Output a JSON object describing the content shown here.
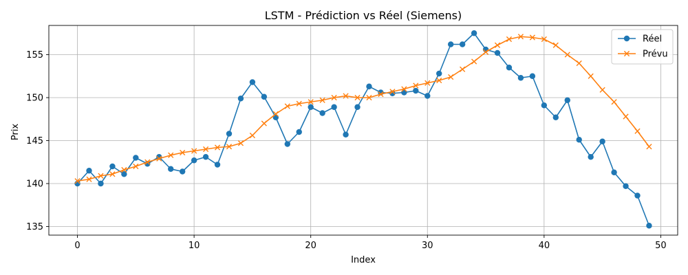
{
  "chart_data": {
    "type": "line",
    "title": "LSTM - Prédiction vs Réel (Siemens)",
    "xlabel": "Index",
    "ylabel": "Prix",
    "xlim": [
      -2.45,
      51.45
    ],
    "ylim": [
      134.0,
      158.4
    ],
    "xticks": [
      0,
      10,
      20,
      30,
      40,
      50
    ],
    "yticks": [
      135,
      140,
      145,
      150,
      155
    ],
    "grid": true,
    "legend_position": "top-right",
    "x": [
      0,
      1,
      2,
      3,
      4,
      5,
      6,
      7,
      8,
      9,
      10,
      11,
      12,
      13,
      14,
      15,
      16,
      17,
      18,
      19,
      20,
      21,
      22,
      23,
      24,
      25,
      26,
      27,
      28,
      29,
      30,
      31,
      32,
      33,
      34,
      35,
      36,
      37,
      38,
      39,
      40,
      41,
      42,
      43,
      44,
      45,
      46,
      47,
      48,
      49
    ],
    "series": [
      {
        "name": "Réel",
        "color": "#1f77b4",
        "marker": "circle",
        "values": [
          140.0,
          141.5,
          140.0,
          142.0,
          141.1,
          143.0,
          142.3,
          143.1,
          141.7,
          141.4,
          142.7,
          143.1,
          142.2,
          145.8,
          149.9,
          151.8,
          150.1,
          147.7,
          144.6,
          146.0,
          148.9,
          148.2,
          148.9,
          145.7,
          148.9,
          151.3,
          150.6,
          150.5,
          150.6,
          150.8,
          150.2,
          152.8,
          156.2,
          156.2,
          157.5,
          155.6,
          155.2,
          153.5,
          152.3,
          152.5,
          149.1,
          147.7,
          149.7,
          145.1,
          143.1,
          144.9,
          141.3,
          139.7,
          138.6,
          135.1
        ]
      },
      {
        "name": "Prévu",
        "color": "#ff7f0e",
        "marker": "x",
        "values": [
          140.3,
          140.5,
          140.9,
          141.1,
          141.6,
          142.0,
          142.5,
          142.9,
          143.3,
          143.6,
          143.8,
          144.0,
          144.2,
          144.3,
          144.7,
          145.6,
          147.0,
          148.1,
          149.0,
          149.3,
          149.5,
          149.7,
          150.0,
          150.2,
          150.0,
          150.0,
          150.4,
          150.7,
          151.0,
          151.4,
          151.7,
          152.0,
          152.4,
          153.3,
          154.2,
          155.3,
          156.1,
          156.8,
          157.1,
          157.0,
          156.8,
          156.1,
          155.0,
          154.0,
          152.5,
          150.9,
          149.5,
          147.8,
          146.1,
          144.3
        ]
      }
    ]
  }
}
